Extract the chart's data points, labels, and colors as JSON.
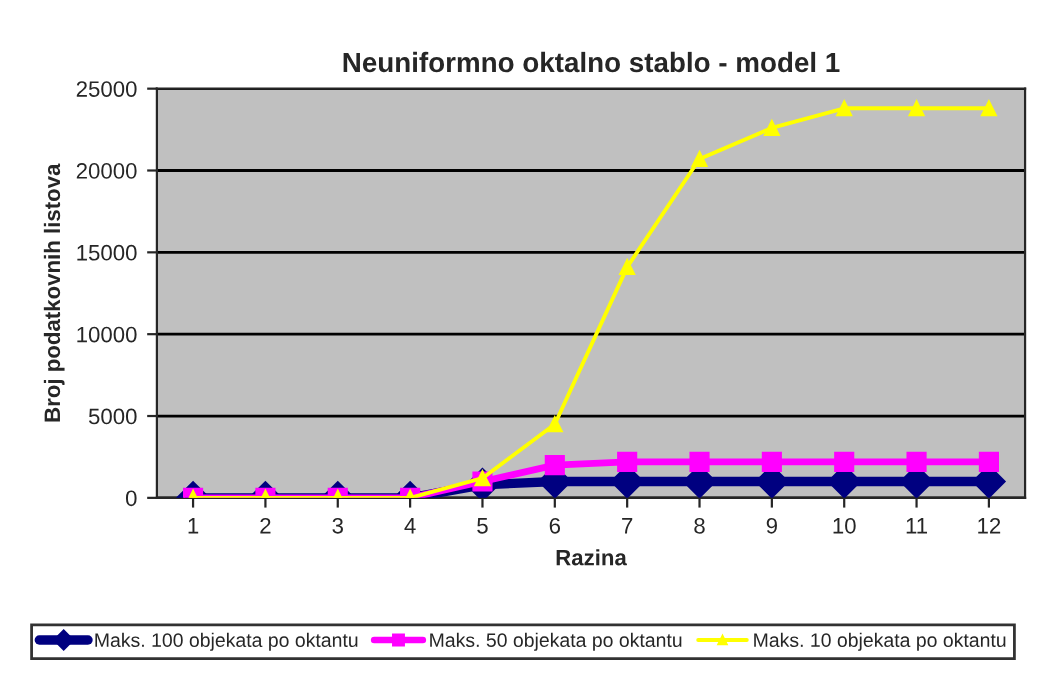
{
  "chart_data": {
    "type": "line",
    "title": "Neuniformno oktalno stablo - model 1",
    "xlabel": "Razina",
    "ylabel": "Broj podatkovnih listova",
    "categories": [
      "1",
      "2",
      "3",
      "4",
      "5",
      "6",
      "7",
      "8",
      "9",
      "10",
      "11",
      "12"
    ],
    "series": [
      {
        "name": "Maks. 100 objekata po oktantu",
        "color": "#000080",
        "marker": "diamond",
        "values": [
          0,
          0,
          0,
          0,
          800,
          1000,
          1000,
          1000,
          1000,
          1000,
          1000,
          1000
        ]
      },
      {
        "name": "Maks. 50 objekata po oktantu",
        "color": "#ff00ff",
        "marker": "square",
        "values": [
          0,
          0,
          0,
          0,
          1000,
          2000,
          2200,
          2200,
          2200,
          2200,
          2200,
          2200
        ]
      },
      {
        "name": "Maks. 10 objekata po oktantu",
        "color": "#ffff00",
        "marker": "triangle",
        "values": [
          0,
          0,
          0,
          0,
          1200,
          4500,
          14100,
          20700,
          22600,
          23800,
          23800,
          23800
        ]
      }
    ],
    "ylim": [
      0,
      25000
    ],
    "yticks": [
      0,
      5000,
      10000,
      15000,
      20000,
      25000
    ],
    "grid": "y",
    "legend": "bottom"
  }
}
